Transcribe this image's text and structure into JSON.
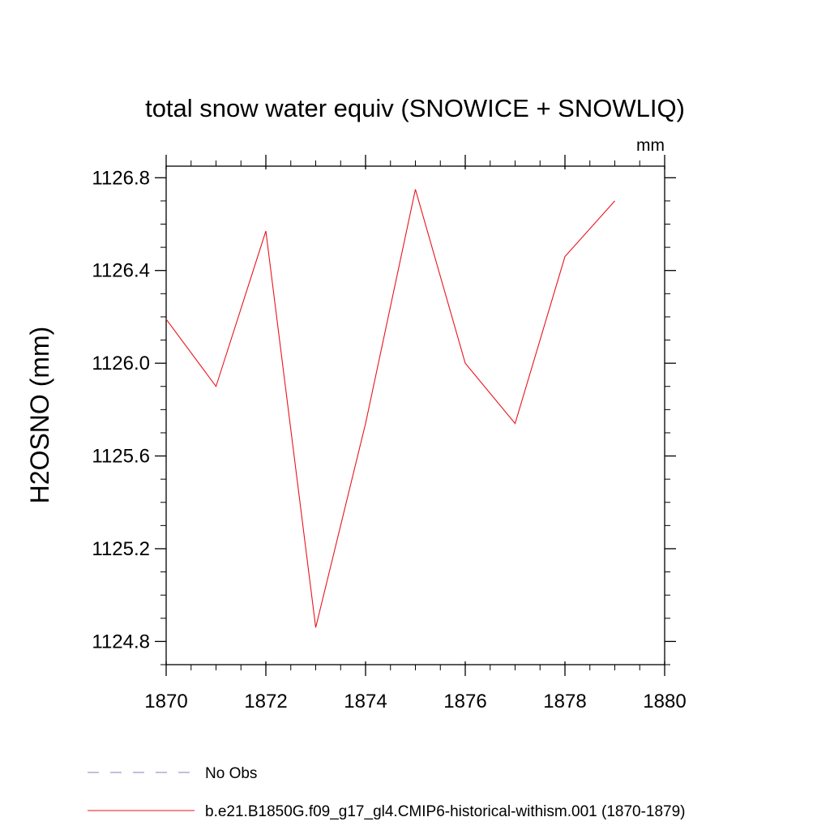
{
  "chart_data": {
    "type": "line",
    "title": "total snow water equiv (SNOWICE + SNOWLIQ)",
    "units": "mm",
    "ylabel": "H2OSNO  (mm)",
    "xlabel": "",
    "xlim": [
      1870,
      1880
    ],
    "ylim": [
      1124.7,
      1126.85
    ],
    "x_ticks": [
      1870,
      1872,
      1874,
      1876,
      1878,
      1880
    ],
    "y_ticks": [
      "1124.8",
      "1125.2",
      "1125.6",
      "1126.0",
      "1126.4",
      "1126.8"
    ],
    "grid": false,
    "legend_position": "bottom-left",
    "series": [
      {
        "name": "No Obs",
        "color": "#8a7fb8",
        "style": "dashed",
        "x": [],
        "y": []
      },
      {
        "name": "b.e21.B1850G.f09_g17_gl4.CMIP6-historical-withism.001 (1870-1879)",
        "color": "#e8141e",
        "style": "solid",
        "x": [
          1870,
          1871,
          1872,
          1873,
          1874,
          1875,
          1876,
          1877,
          1878,
          1879
        ],
        "y": [
          1126.19,
          1125.9,
          1126.57,
          1124.86,
          1125.74,
          1126.75,
          1126.0,
          1125.74,
          1126.46,
          1126.7
        ]
      }
    ]
  }
}
